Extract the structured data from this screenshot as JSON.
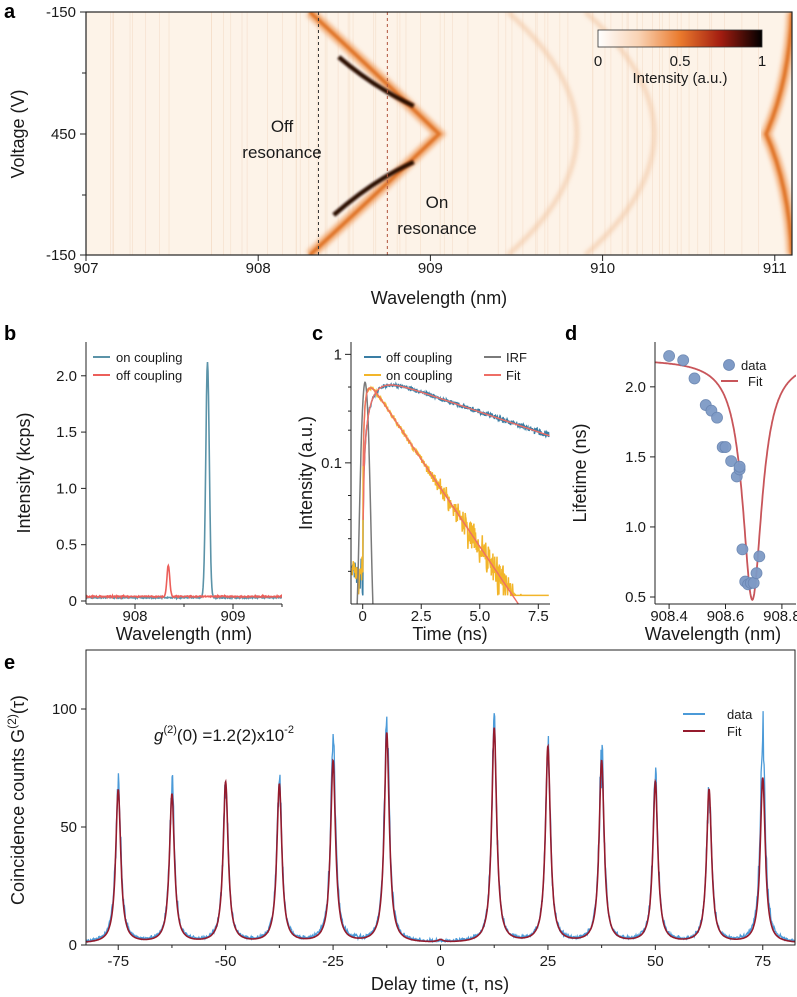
{
  "chart_data": [
    {
      "panel": "a",
      "type": "heatmap",
      "xlabel": "Wavelength (nm)",
      "ylabel": "Voltage (V)",
      "xlim": [
        907,
        911.1
      ],
      "x_ticks": [
        "907",
        "908",
        "909",
        "910",
        "911"
      ],
      "y_ticks": [
        "-150",
        "450",
        "-150"
      ],
      "colorbar": {
        "label": "Intensity (a.u.)",
        "ticks": [
          "0",
          "0.5",
          "1"
        ],
        "colors": [
          "#ffffff",
          "#f9d2b3",
          "#ea7a2d",
          "#a21c10",
          "#000000"
        ]
      },
      "annotations": {
        "off": [
          "Off",
          "resonance"
        ],
        "on": [
          "On",
          "resonance"
        ]
      },
      "marker_lines_nm": [
        908.35,
        908.75
      ],
      "branches": [
        {
          "apex_nm": 909.05,
          "edge_nm": 908.3,
          "apex_voltage": 450,
          "peak_brightness_nm": 908.7
        },
        {
          "apex_nm": 910.95,
          "edge_nm": 911.1,
          "apex_voltage": 450
        }
      ]
    },
    {
      "panel": "b",
      "type": "line",
      "xlabel": "Wavelength (nm)",
      "ylabel": "Intensity (kcps)",
      "xlim": [
        907.5,
        909.5
      ],
      "ylim": [
        0,
        2.3
      ],
      "x_ticks": [
        "908",
        "909"
      ],
      "y_ticks": [
        "0",
        "0.5",
        "1.0",
        "1.5",
        "2.0"
      ],
      "legend_position": "top-left",
      "series": [
        {
          "name": "on coupling",
          "color": "#5b93a8",
          "peak_nm": 908.74,
          "peak_kcps": 2.12,
          "baseline_kcps": 0.03
        },
        {
          "name": "off coupling",
          "color": "#ec5f5a",
          "peak_nm": 908.34,
          "peak_kcps": 0.32,
          "baseline_kcps": 0.04
        }
      ]
    },
    {
      "panel": "c",
      "type": "line",
      "xlabel": "Time (ns)",
      "ylabel": "Intensity (a.u.)",
      "xlim": [
        -0.5,
        8
      ],
      "ylim": [
        0.005,
        1.3
      ],
      "y_scale": "log",
      "x_ticks": [
        "0",
        "2.5",
        "5.0",
        "7.5"
      ],
      "y_ticks": [
        "1",
        "0.1"
      ],
      "series": [
        {
          "name": "off coupling",
          "color": "#3a7ea4",
          "peak": 0.55,
          "peak_time_ns": 1.0,
          "lifetime_ns": 5.9
        },
        {
          "name": "on coupling",
          "color": "#f2b52a",
          "peak": 0.55,
          "peak_time_ns": 0.3,
          "lifetime_ns": 1.35
        },
        {
          "name": "IRF",
          "color": "#7a7a7a",
          "center_ns": 0.1
        },
        {
          "name": "Fit",
          "color": "#ee6e66"
        }
      ]
    },
    {
      "panel": "d",
      "type": "scatter",
      "xlabel": "Wavelength (nm)",
      "ylabel": "Lifetime (ns)",
      "xlim": [
        908.35,
        908.85
      ],
      "ylim": [
        0.45,
        2.32
      ],
      "x_ticks": [
        "908.4",
        "908.6",
        "908.8"
      ],
      "y_ticks": [
        "0.5",
        "1.0",
        "1.5",
        "2.0"
      ],
      "series": [
        {
          "name": "data",
          "color": "#7e9ac6",
          "x": [
            908.4,
            908.45,
            908.49,
            908.53,
            908.55,
            908.57,
            908.59,
            908.6,
            908.62,
            908.64,
            908.65,
            908.65,
            908.66,
            908.67,
            908.68,
            908.69,
            908.7,
            908.71,
            908.72
          ],
          "y": [
            2.22,
            2.19,
            2.06,
            1.87,
            1.83,
            1.78,
            1.57,
            1.57,
            1.47,
            1.36,
            1.41,
            1.43,
            0.84,
            0.61,
            0.59,
            0.6,
            0.6,
            0.67,
            0.79
          ]
        },
        {
          "name": "Fit",
          "color": "#c8555a",
          "tau_max_ns": 2.2,
          "tau_min_ns": 0.48,
          "center_nm": 908.695,
          "width_nm": 0.042
        }
      ]
    },
    {
      "panel": "e",
      "type": "line",
      "xlabel": "Delay time (τ, ns)",
      "ylabel": "Coincidence counts G",
      "ylabel_sup": "(2)",
      "ylabel_arg": "(τ)",
      "xlim": [
        -82.5,
        82.5
      ],
      "ylim": [
        0,
        125
      ],
      "x_ticks": [
        "-75",
        "-50",
        "-25",
        "0",
        "25",
        "50",
        "75"
      ],
      "y_ticks": [
        "0",
        "50",
        "100"
      ],
      "annotation": {
        "g": "g",
        "sup": "(2)",
        "value": "(0) =1.2(2)x10",
        "exp": "-2"
      },
      "peak_spacing_ns": 12.5,
      "series": [
        {
          "name": "data",
          "color": "#4b9ad8",
          "peaks_x": [
            -75,
            -62.5,
            -50,
            -37.5,
            -25,
            -12.5,
            0,
            12.5,
            25,
            37.5,
            50,
            62.5,
            75
          ],
          "peaks_y": [
            72,
            67,
            68,
            71,
            86,
            96,
            0,
            92,
            84,
            79,
            71,
            66,
            86
          ]
        },
        {
          "name": "Fit",
          "color": "#951b2d",
          "peaks_x": [
            -75,
            -62.5,
            -50,
            -37.5,
            -25,
            -12.5,
            0,
            12.5,
            25,
            37.5,
            50,
            62.5,
            75
          ],
          "peaks_y": [
            65,
            63,
            68,
            67,
            77,
            89,
            1,
            91,
            83,
            77,
            68,
            65,
            70
          ]
        }
      ]
    }
  ],
  "panel_labels": [
    "a",
    "b",
    "c",
    "d",
    "e"
  ]
}
